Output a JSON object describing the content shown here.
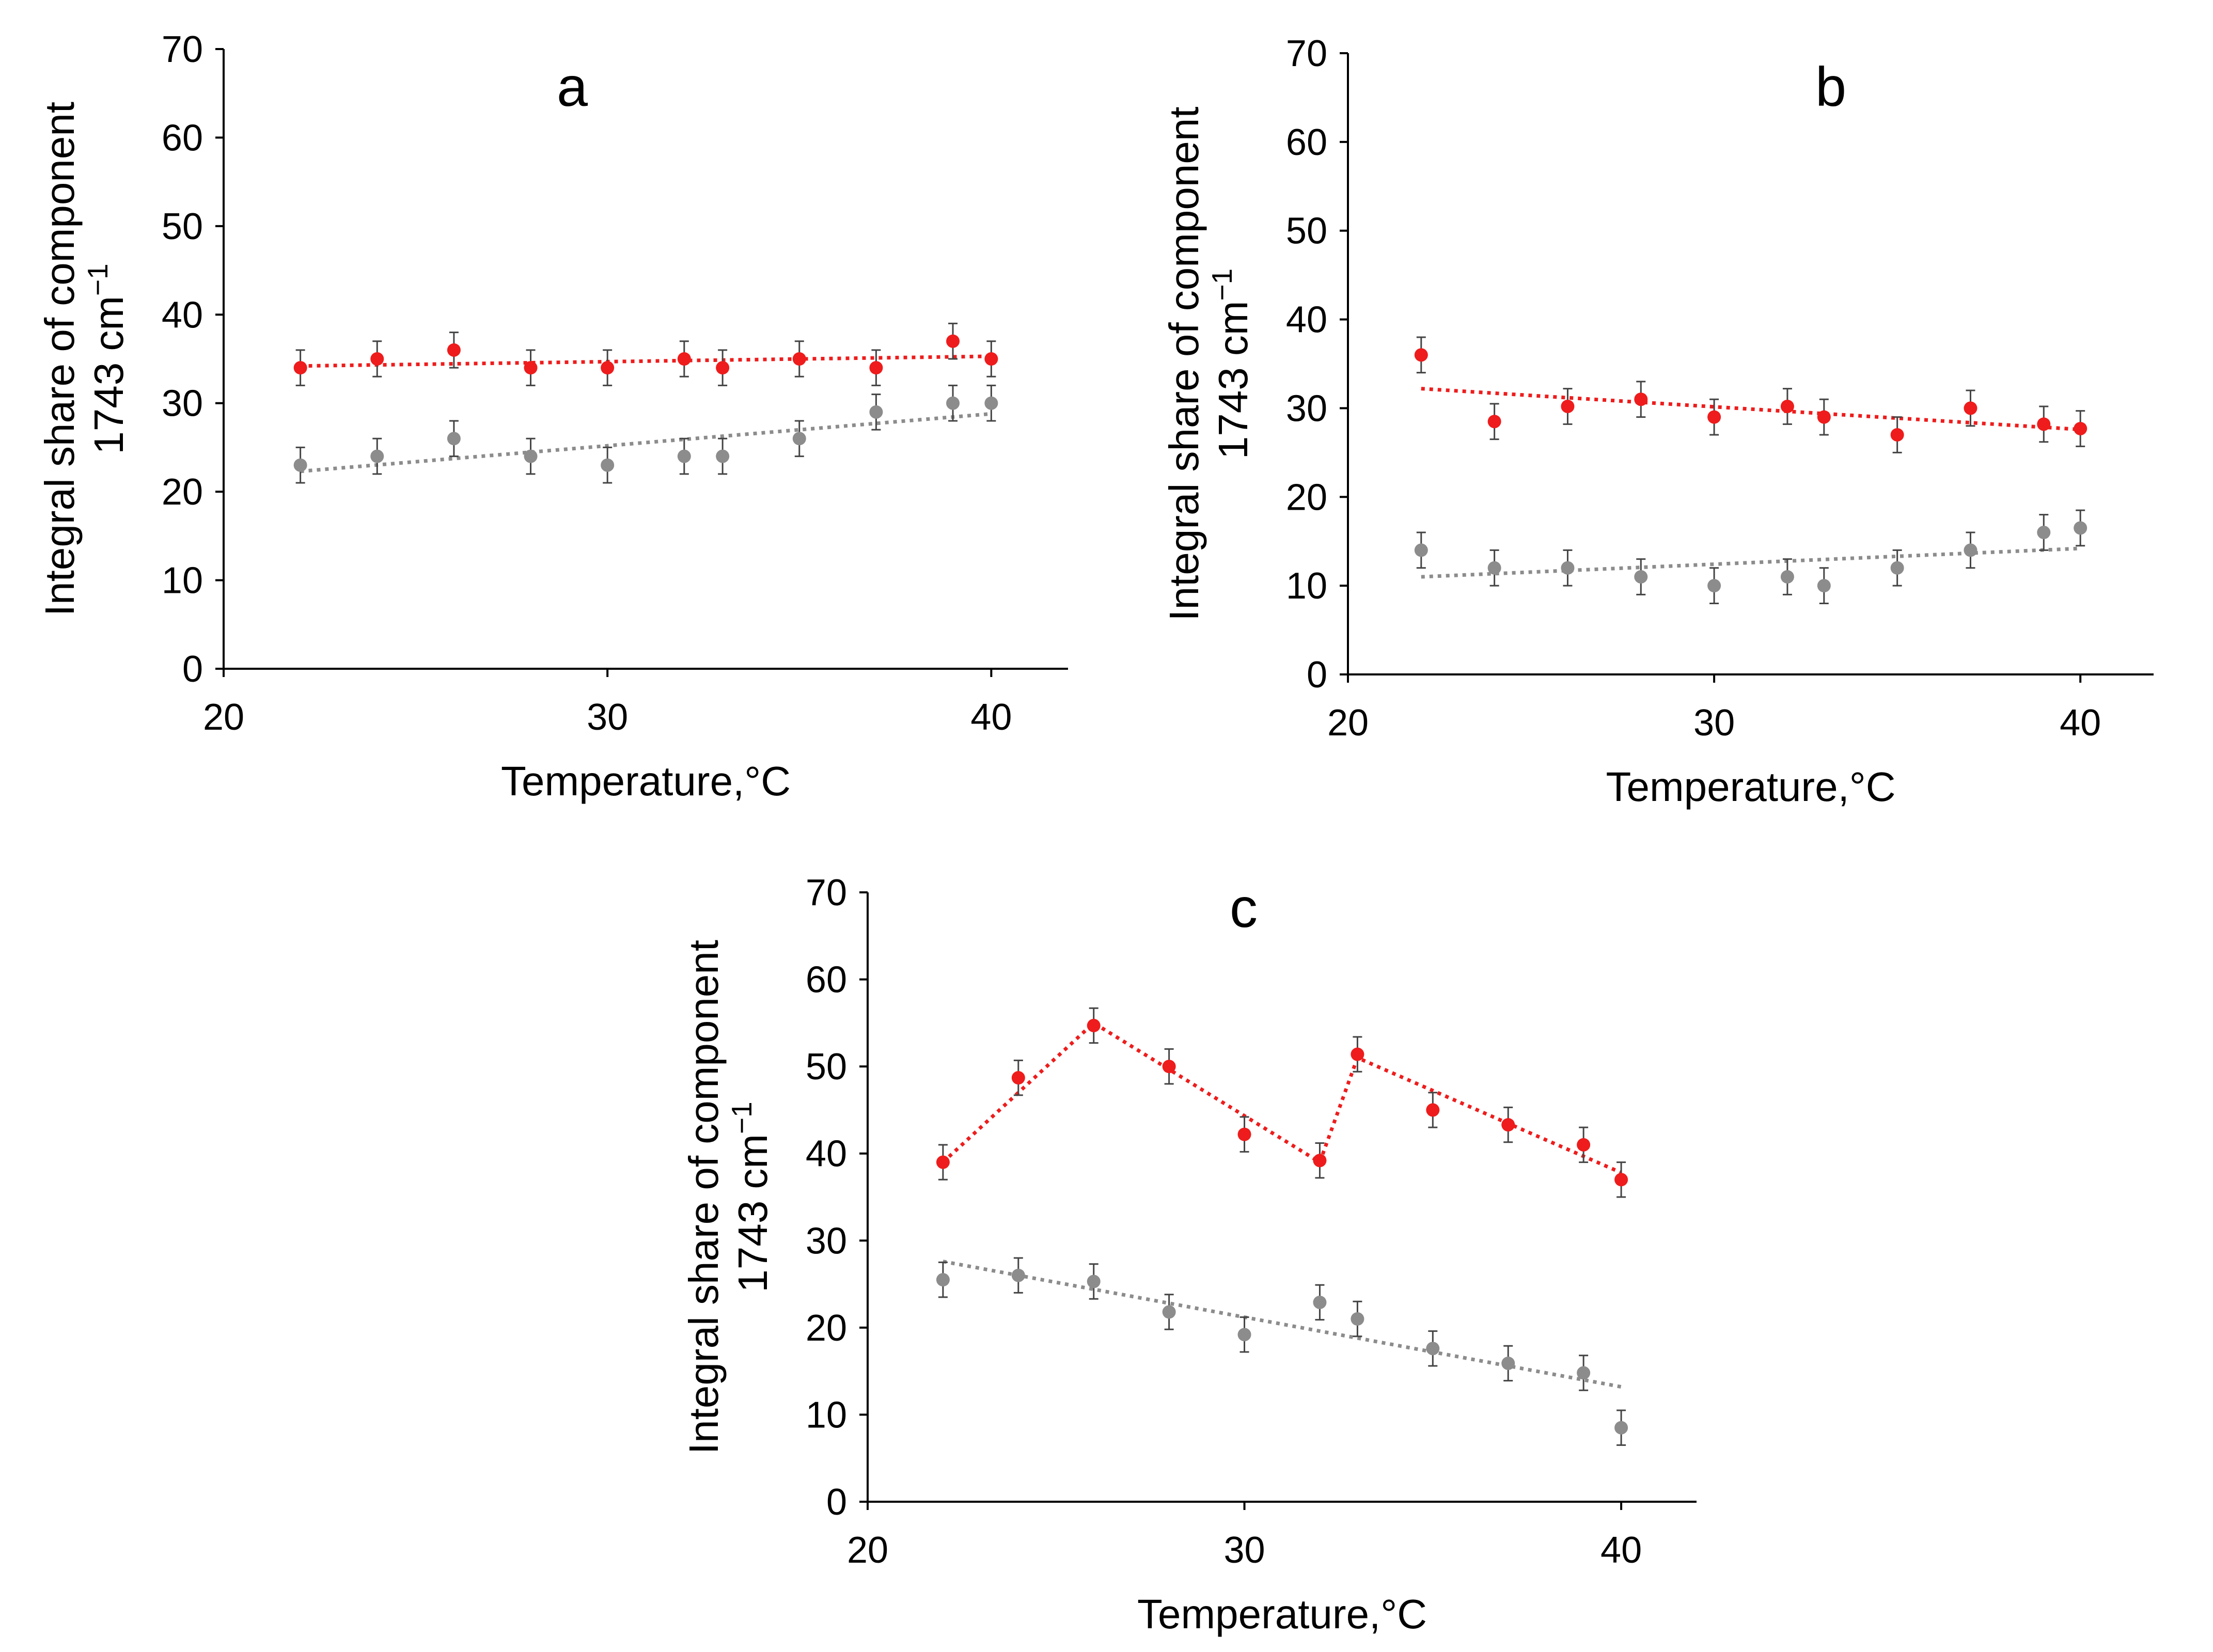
{
  "colors": {
    "series_red": "#ee1c1c",
    "series_gray": "#8c8c8c",
    "axis": "#000000",
    "errorbar": "#444444"
  },
  "chart_data": [
    {
      "panel_label": "a",
      "type": "scatter",
      "xlabel": "Temperature,°C",
      "ylabel_line1": "Integral share of component",
      "ylabel_line2": "1743 cm",
      "ylabel_sup": "−1",
      "xlim": [
        20,
        42
      ],
      "ylim": [
        0,
        70
      ],
      "xticks": [
        20,
        30,
        40
      ],
      "yticks": [
        0,
        10,
        20,
        30,
        40,
        50,
        60,
        70
      ],
      "series": [
        {
          "name": "red",
          "color": "#ee1c1c",
          "x": [
            22,
            24,
            26,
            28,
            30,
            32,
            33,
            35,
            37,
            39,
            40
          ],
          "y": [
            34,
            35,
            36,
            34,
            34,
            35,
            34,
            35,
            34,
            37,
            35
          ],
          "err": [
            2,
            2,
            2,
            2,
            2,
            2,
            2,
            2,
            2,
            2,
            2
          ],
          "fit": {
            "kind": "linear",
            "x": [
              22,
              40
            ],
            "y": [
              34.2,
              35.3
            ]
          }
        },
        {
          "name": "gray",
          "color": "#8c8c8c",
          "x": [
            22,
            24,
            26,
            28,
            30,
            32,
            33,
            35,
            37,
            39,
            40
          ],
          "y": [
            23,
            24,
            26,
            24,
            23,
            24,
            24,
            26,
            29,
            30,
            30
          ],
          "err": [
            2,
            2,
            2,
            2,
            2,
            2,
            2,
            2,
            2,
            2,
            2
          ],
          "fit": {
            "kind": "linear",
            "x": [
              22,
              40
            ],
            "y": [
              22.3,
              28.8
            ]
          }
        }
      ]
    },
    {
      "panel_label": "b",
      "type": "scatter",
      "xlabel": "Temperature,°C",
      "ylabel_line1": "Integral share of component",
      "ylabel_line2": "1743 cm",
      "ylabel_sup": "−1",
      "xlim": [
        20,
        42
      ],
      "ylim": [
        0,
        70
      ],
      "xticks": [
        20,
        30,
        40
      ],
      "yticks": [
        0,
        10,
        20,
        30,
        40,
        50,
        60,
        70
      ],
      "series": [
        {
          "name": "red",
          "color": "#ee1c1c",
          "x": [
            22,
            24,
            26,
            28,
            30,
            32,
            33,
            35,
            37,
            39,
            40
          ],
          "y": [
            36,
            28.5,
            30.2,
            31,
            29,
            30.2,
            29,
            27,
            30,
            28.2,
            27.7
          ],
          "err": [
            2,
            2,
            2,
            2,
            2,
            2,
            2,
            2,
            2,
            2,
            2
          ],
          "fit": {
            "kind": "linear",
            "x": [
              22,
              40
            ],
            "y": [
              32.2,
              27.6
            ]
          }
        },
        {
          "name": "gray",
          "color": "#8c8c8c",
          "x": [
            22,
            24,
            26,
            28,
            30,
            32,
            33,
            35,
            37,
            39,
            40
          ],
          "y": [
            14,
            12,
            12,
            11,
            10,
            11,
            10,
            12,
            14,
            16,
            16.5
          ],
          "err": [
            2,
            2,
            2,
            2,
            2,
            2,
            2,
            2,
            2,
            2,
            2
          ],
          "fit": {
            "kind": "linear",
            "x": [
              22,
              40
            ],
            "y": [
              11,
              14.2
            ]
          }
        }
      ]
    },
    {
      "panel_label": "c",
      "type": "scatter",
      "xlabel": "Temperature,°C",
      "ylabel_line1": "Integral share of component",
      "ylabel_line2": "1743 cm",
      "ylabel_sup": "−1",
      "xlim": [
        20,
        42
      ],
      "ylim": [
        0,
        70
      ],
      "xticks": [
        20,
        30,
        40
      ],
      "yticks": [
        0,
        10,
        20,
        30,
        40,
        50,
        60,
        70
      ],
      "series": [
        {
          "name": "red",
          "color": "#ee1c1c",
          "x": [
            22,
            24,
            26,
            28,
            30,
            32,
            33,
            35,
            37,
            39,
            40
          ],
          "y": [
            39,
            48.7,
            54.7,
            50,
            42.2,
            39.2,
            51.4,
            45,
            43.3,
            41,
            37
          ],
          "err": [
            2,
            2,
            2,
            2,
            2,
            2,
            2,
            2,
            2,
            2,
            2
          ],
          "fit": {
            "kind": "segments",
            "x": [
              22,
              26,
              32,
              33,
              40
            ],
            "y": [
              39,
              55,
              39,
              51,
              37.8
            ]
          }
        },
        {
          "name": "gray",
          "color": "#8c8c8c",
          "x": [
            22,
            24,
            26,
            28,
            30,
            32,
            33,
            35,
            37,
            39,
            40
          ],
          "y": [
            25.5,
            26,
            25.3,
            21.8,
            19.2,
            22.9,
            21,
            17.6,
            15.9,
            14.8,
            8.5
          ],
          "err": [
            2,
            2,
            2,
            2,
            2,
            2,
            2,
            2,
            2,
            2,
            2
          ],
          "fit": {
            "kind": "linear",
            "x": [
              22,
              40
            ],
            "y": [
              27.6,
              13.2
            ]
          }
        }
      ]
    }
  ]
}
